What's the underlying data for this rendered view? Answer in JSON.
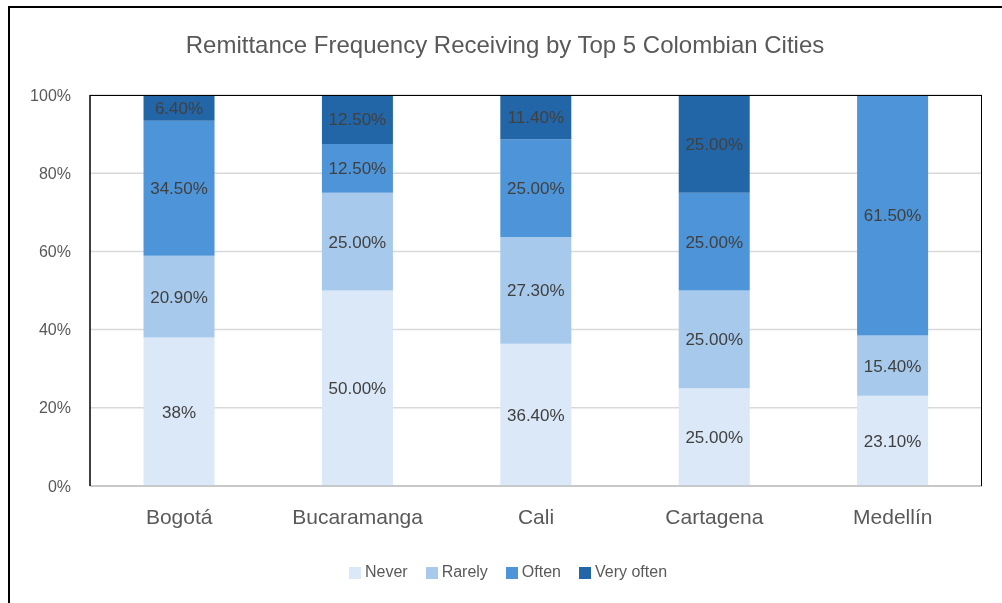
{
  "chart_data": {
    "type": "bar",
    "title": "Remittance Frequency Receiving by Top 5 Colombian Cities",
    "categories": [
      "Bogotá",
      "Bucaramanga",
      "Cali",
      "Cartagena",
      "Medellín"
    ],
    "stacked": true,
    "series": [
      {
        "name": "Never",
        "color": "#dae8f7",
        "values": [
          38,
          50,
          36.4,
          25,
          23.1
        ],
        "value_labels": [
          "38%",
          "50.00%",
          "36.40%",
          "25.00%",
          "23.10%"
        ]
      },
      {
        "name": "Rarely",
        "color": "#a6c9ec",
        "values": [
          20.9,
          25,
          27.3,
          25,
          15.4
        ],
        "value_labels": [
          "20.90%",
          "25.00%",
          "27.30%",
          "25.00%",
          "15.40%"
        ]
      },
      {
        "name": "Often",
        "color": "#4e94d8",
        "values": [
          34.5,
          12.5,
          25,
          25,
          61.5
        ],
        "value_labels": [
          "34.50%",
          "12.50%",
          "25.00%",
          "25.00%",
          "61.50%"
        ]
      },
      {
        "name": "Very often",
        "color": "#2266a8",
        "values": [
          6.4,
          12.5,
          11.4,
          25,
          null
        ],
        "value_labels": [
          "6.40%",
          "12.50%",
          "11.40%",
          "25.00%",
          null
        ]
      }
    ],
    "ylim": [
      0,
      100
    ],
    "yticks": [
      {
        "value": 0,
        "label": "0%"
      },
      {
        "value": 20,
        "label": "20%"
      },
      {
        "value": 40,
        "label": "40%"
      },
      {
        "value": 60,
        "label": "60%"
      },
      {
        "value": 80,
        "label": "80%"
      },
      {
        "value": 100,
        "label": "100%"
      }
    ],
    "grid": "y",
    "legend": "bottom"
  }
}
